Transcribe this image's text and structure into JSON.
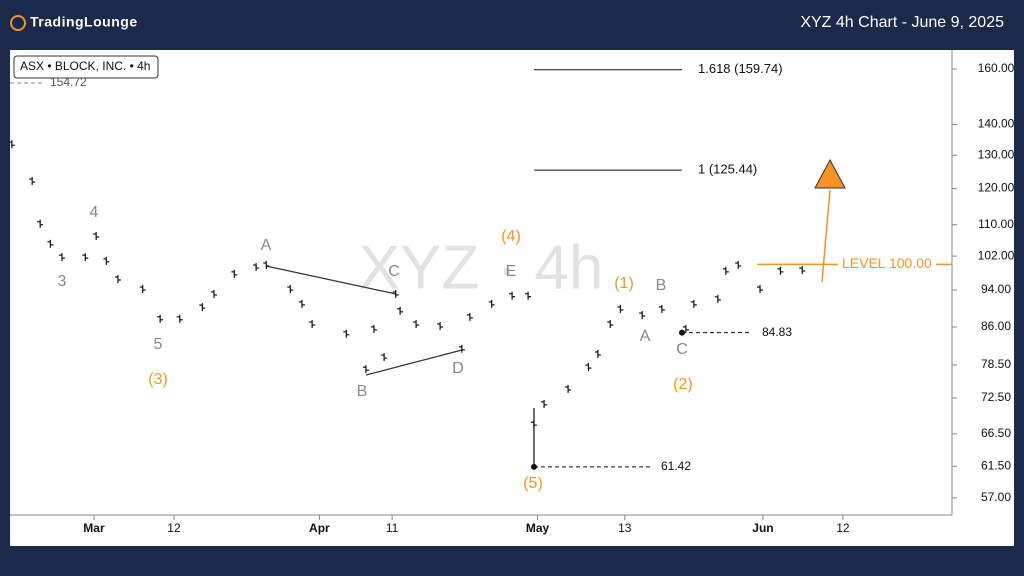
{
  "chart_data": {
    "type": "ticks",
    "brand": "TradingLounge",
    "title": "XYZ 4h Chart - June 9, 2025",
    "legend": "ASX • BLOCK, INC. • 4h",
    "watermark": "XYZ · 4h",
    "color": "#111111",
    "log_scale": true,
    "x": [
      48.7,
      51.5,
      52.6,
      54,
      55.6,
      58.8,
      60.3,
      61.7,
      63.3,
      66.7,
      69.1,
      71.8,
      74.9,
      76.5,
      79.3,
      82.3,
      83.7,
      87,
      88.6,
      90,
      94.7,
      97.4,
      98.5,
      99.9,
      101.5,
      102.1,
      104.3,
      107.6,
      110.6,
      111.7,
      114.7,
      117.5,
      119.7,
      120.5,
      121.9,
      125.2,
      128,
      129.3,
      131,
      132.4,
      135.4,
      138.1,
      141.4,
      142.5,
      145.8,
      146.9,
      148.6,
      151.6,
      154.4,
      157.4
    ],
    "values": [
      133.2,
      121.9,
      110,
      104.8,
      101.5,
      101.5,
      106.8,
      100.6,
      96.3,
      94,
      87.5,
      87.5,
      90,
      92.9,
      97.5,
      99.1,
      99.6,
      94,
      90.7,
      86.4,
      84.4,
      77.5,
      85.4,
      79.8,
      92.9,
      89.2,
      86.4,
      86,
      81.4,
      87.9,
      90.7,
      92.5,
      92.5,
      67.9,
      71.3,
      73.9,
      77.9,
      80.4,
      86.4,
      89.6,
      88.3,
      89.6,
      85.4,
      90.7,
      91.8,
      98.2,
      99.6,
      94,
      98.2,
      98.4
    ],
    "xlim": [
      48.45,
      178
    ],
    "xticks": [
      {
        "value": 60,
        "label": "Mar"
      },
      {
        "value": 71,
        "label": "12"
      },
      {
        "value": 91,
        "label": "Apr"
      },
      {
        "value": 101,
        "label": "11"
      },
      {
        "value": 121,
        "label": "May"
      },
      {
        "value": 133,
        "label": "13"
      },
      {
        "value": 152,
        "label": "Jun"
      },
      {
        "value": 163,
        "label": "12"
      }
    ],
    "ylim": [
      54.7,
      167.5
    ],
    "yticks": [
      {
        "value": 160,
        "label": "160.00"
      },
      {
        "value": 140,
        "label": "140.00"
      },
      {
        "value": 130,
        "label": "130.00"
      },
      {
        "value": 120,
        "label": "120.00"
      },
      {
        "value": 110,
        "label": "110.00"
      },
      {
        "value": 102,
        "label": "102.00"
      },
      {
        "value": 94,
        "label": "94.00"
      },
      {
        "value": 86,
        "label": "86.00"
      },
      {
        "value": 78.5,
        "label": "78.50"
      },
      {
        "value": 72.5,
        "label": "72.50"
      },
      {
        "value": 66.5,
        "label": "66.50"
      },
      {
        "value": 61.5,
        "label": "61.50"
      },
      {
        "value": 57,
        "label": "57.00"
      }
    ],
    "levels": [
      {
        "value": 159.74,
        "label": "1.618 (159.74)"
      },
      {
        "value": 125.44,
        "label": "1 (125.44)"
      },
      {
        "value": 100,
        "label": "LEVEL 100.00"
      },
      {
        "value": 84.83,
        "label": "84.83"
      },
      {
        "value": 61.42,
        "label": "61.42"
      },
      {
        "value": 154.72,
        "label": "154.72"
      }
    ],
    "waves": [
      "4",
      "3",
      "5",
      "(3)",
      "A",
      "B",
      "C",
      "D",
      "E",
      "(4)",
      "(5)",
      "(1)",
      "A",
      "B",
      "C",
      "(2)"
    ]
  }
}
